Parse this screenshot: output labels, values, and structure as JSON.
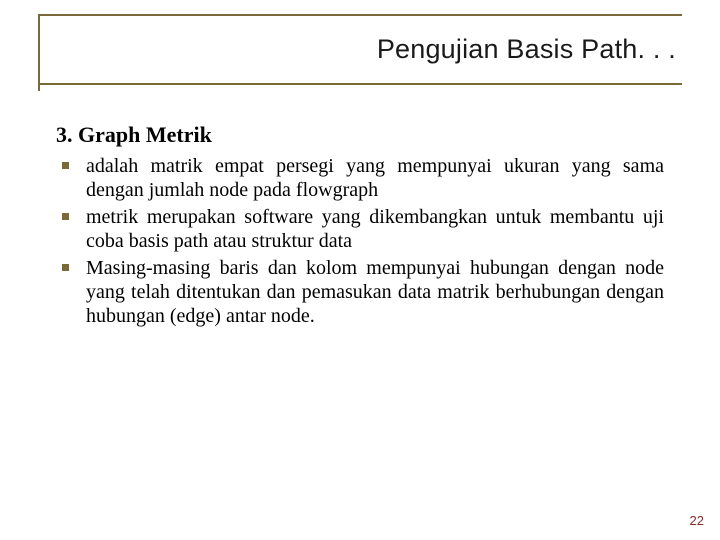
{
  "title": "Pengujian Basis Path. . .",
  "heading": "3. Graph Metrik",
  "bullets": [
    "adalah matrik empat persegi yang mempunyai ukuran yang sama dengan jumlah node pada flowgraph",
    "metrik merupakan software yang dikembangkan untuk membantu uji coba basis path atau struktur data",
    "Masing-masing baris dan kolom mempunyai hubungan dengan node yang telah ditentukan dan pemasukan data matrik berhubungan dengan hubungan (edge) antar node."
  ],
  "page_number": "22",
  "colors": {
    "accent": "#7a6a3a",
    "pagenum": "#8a2a2a",
    "text": "#000000",
    "background": "#ffffff"
  }
}
